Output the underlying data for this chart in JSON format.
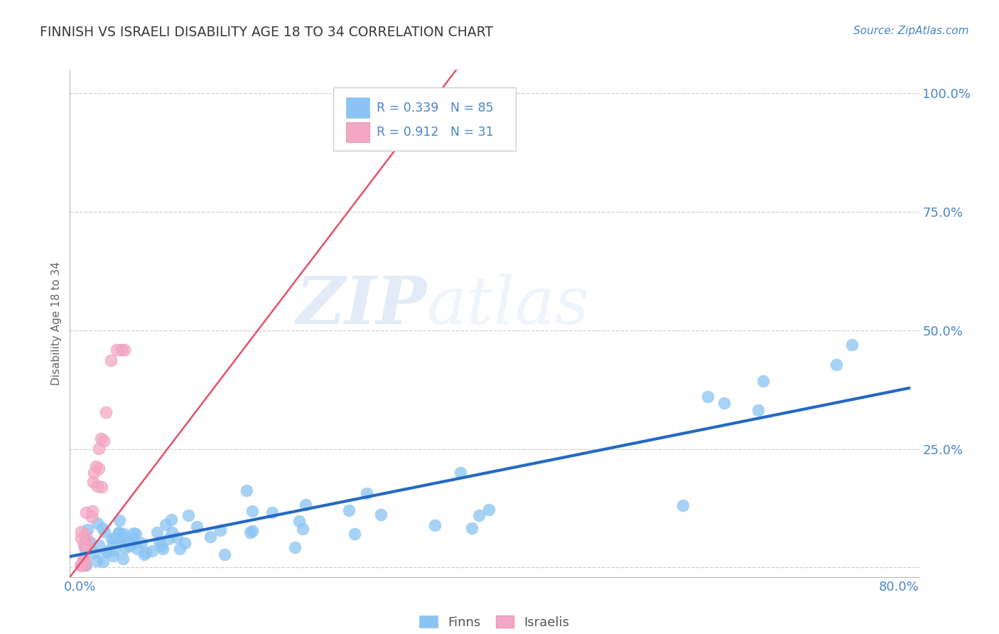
{
  "title": "FINNISH VS ISRAELI DISABILITY AGE 18 TO 34 CORRELATION CHART",
  "source": "Source: ZipAtlas.com",
  "ylabel": "Disability Age 18 to 34",
  "xlim": [
    -0.01,
    0.82
  ],
  "ylim": [
    -0.02,
    1.05
  ],
  "xtick_positions": [
    0.0,
    0.1,
    0.2,
    0.3,
    0.4,
    0.5,
    0.6,
    0.7,
    0.8
  ],
  "xticklabels": [
    "0.0%",
    "",
    "",
    "",
    "",
    "",
    "",
    "",
    "80.0%"
  ],
  "ytick_positions": [
    0.0,
    0.25,
    0.5,
    0.75,
    1.0
  ],
  "yticklabels": [
    "",
    "25.0%",
    "50.0%",
    "75.0%",
    "100.0%"
  ],
  "finns_R": 0.339,
  "finns_N": 85,
  "israelis_R": 0.912,
  "israelis_N": 31,
  "finns_color": "#89c4f4",
  "israelis_color": "#f4a7c3",
  "finns_line_color": "#2469c2",
  "israelis_line_color": "#e8506a",
  "tick_color": "#4a86c8",
  "title_color": "#3a3a3a",
  "watermark_zip": "ZIP",
  "watermark_atlas": "atlas",
  "grid_color": "#d0d0d0",
  "background_color": "#ffffff",
  "legend_edge_color": "#cccccc"
}
